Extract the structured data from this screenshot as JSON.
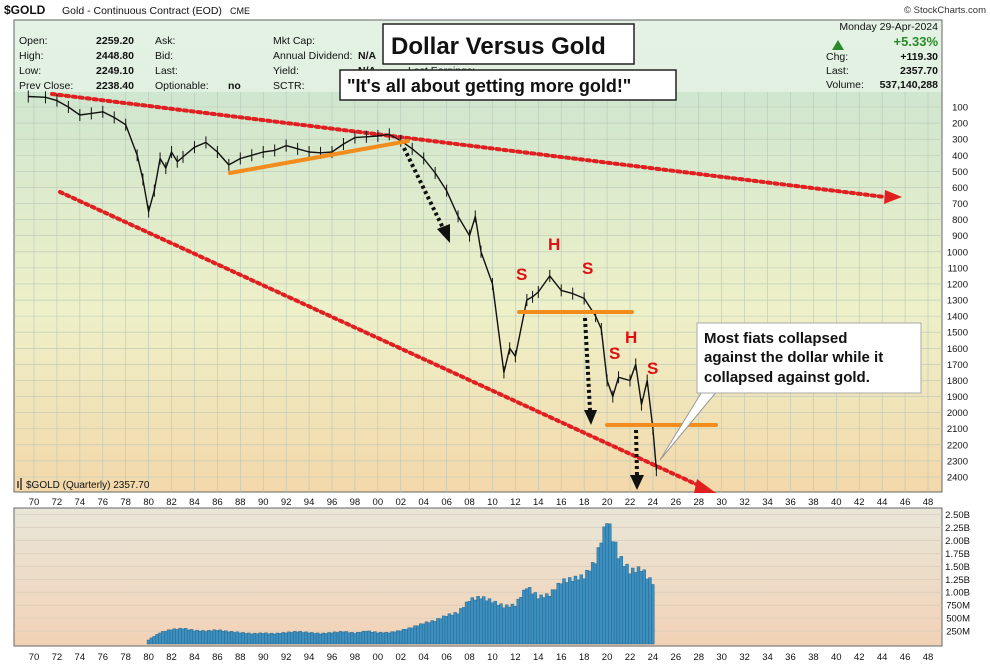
{
  "header": {
    "symbol": "$GOLD",
    "name": "Gold - Continuous Contract (EOD)",
    "exchange": "CME",
    "watermark": "© StockCharts.com",
    "date": "Monday  29-Apr-2024",
    "change_pct": "+5.33%",
    "col1": [
      {
        "label": "Open:",
        "value": "2259.20"
      },
      {
        "label": "High:",
        "value": "2448.80"
      },
      {
        "label": "Low:",
        "value": "2249.10"
      },
      {
        "label": "Prev Close:",
        "value": "2238.40"
      }
    ],
    "col2": [
      {
        "label": "Ask:",
        "value": ""
      },
      {
        "label": "Bid:",
        "value": ""
      },
      {
        "label": "Last:",
        "value": ""
      },
      {
        "label": "Optionable:",
        "value": "no"
      }
    ],
    "col3": [
      {
        "label": "Mkt Cap:",
        "value": ""
      },
      {
        "label": "Annual Dividend:",
        "value": "N/A"
      },
      {
        "label": "Yield:",
        "value": "N/A"
      },
      {
        "label": "SCTR:",
        "value": ""
      }
    ],
    "col4_label": "Last Earnings:",
    "col5": [
      {
        "label": "Chg:",
        "value": "+119.30"
      },
      {
        "label": "Last:",
        "value": "2357.70"
      },
      {
        "label": "Volume:",
        "value": "537,140,288"
      }
    ]
  },
  "annotations": {
    "title": "Dollar Versus Gold",
    "quote": "\"It's all about getting more gold!\"",
    "callout": [
      "Most fiats collapsed",
      "against the dollar while it",
      "collapsed against gold."
    ],
    "pattern_labels": [
      "S",
      "H",
      "S",
      "S",
      "H",
      "S"
    ]
  },
  "chart_data": [
    {
      "type": "line",
      "legend": "$GOLD (Quarterly) 2357.70",
      "y_scale": "inverted (price increases downward)",
      "ylim": [
        50,
        2480
      ],
      "xlim": [
        1969,
        2049
      ],
      "y_ticks": [
        100,
        200,
        300,
        400,
        500,
        600,
        700,
        800,
        900,
        1000,
        1100,
        1200,
        1300,
        1400,
        1500,
        1600,
        1700,
        1800,
        1900,
        2000,
        2100,
        2200,
        2300,
        2400
      ],
      "x_tick_labels": [
        "70",
        "72",
        "74",
        "76",
        "78",
        "80",
        "82",
        "84",
        "86",
        "88",
        "90",
        "92",
        "94",
        "96",
        "98",
        "00",
        "02",
        "04",
        "06",
        "08",
        "10",
        "12",
        "14",
        "16",
        "18",
        "20",
        "22",
        "24",
        "26",
        "28",
        "30",
        "32",
        "34",
        "36",
        "38",
        "40",
        "42",
        "44",
        "46",
        "48"
      ],
      "grid": true,
      "x": [
        1969.5,
        1971,
        1972,
        1973,
        1974,
        1975,
        1976,
        1977,
        1978,
        1979,
        1979.5,
        1980,
        1980.5,
        1981,
        1981.5,
        1982,
        1982.5,
        1983,
        1984,
        1985,
        1986,
        1987,
        1988,
        1989,
        1990,
        1991,
        1992,
        1993,
        1994,
        1995,
        1996,
        1997,
        1998,
        1999,
        2000,
        2001,
        2002,
        2003,
        2004,
        2005,
        2006,
        2007,
        2008,
        2008.5,
        2009,
        2010,
        2011,
        2011.5,
        2012,
        2013,
        2013.5,
        2014,
        2015,
        2016,
        2017,
        2018,
        2019,
        2019.5,
        2020,
        2020.5,
        2021,
        2022,
        2022.5,
        2023,
        2023.5,
        2024,
        2024.3
      ],
      "values": [
        35,
        40,
        60,
        100,
        150,
        140,
        130,
        165,
        210,
        400,
        550,
        750,
        620,
        420,
        480,
        380,
        440,
        410,
        350,
        320,
        380,
        460,
        420,
        400,
        380,
        370,
        340,
        360,
        380,
        385,
        380,
        330,
        290,
        285,
        280,
        270,
        310,
        360,
        420,
        510,
        620,
        780,
        900,
        780,
        1000,
        1200,
        1750,
        1600,
        1650,
        1300,
        1280,
        1250,
        1150,
        1240,
        1260,
        1290,
        1400,
        1480,
        1800,
        1900,
        1780,
        1800,
        1700,
        1950,
        1800,
        2100,
        2357.7
      ]
    },
    {
      "type": "bar",
      "name": "Volume",
      "y_ticks_labels": [
        "250M",
        "500M",
        "750M",
        "1.00B",
        "1.25B",
        "1.50B",
        "1.75B",
        "2.00B",
        "2.25B",
        "2.50B"
      ],
      "ylim": [
        0,
        2.55
      ],
      "unit": "billions",
      "x": [
        1980,
        1981,
        1982,
        1983,
        1984,
        1985,
        1986,
        1987,
        1988,
        1989,
        1990,
        1991,
        1992,
        1993,
        1994,
        1995,
        1996,
        1997,
        1998,
        1999,
        2000,
        2001,
        2002,
        2003,
        2004,
        2005,
        2006,
        2007,
        2008,
        2009,
        2010,
        2011,
        2012,
        2013,
        2014,
        2015,
        2016,
        2017,
        2018,
        2019,
        2020,
        2021,
        2022,
        2023,
        2024
      ],
      "values": [
        0.08,
        0.22,
        0.28,
        0.3,
        0.26,
        0.25,
        0.27,
        0.24,
        0.22,
        0.2,
        0.21,
        0.2,
        0.22,
        0.24,
        0.22,
        0.2,
        0.22,
        0.24,
        0.21,
        0.25,
        0.22,
        0.22,
        0.26,
        0.32,
        0.4,
        0.45,
        0.55,
        0.6,
        0.85,
        0.9,
        0.82,
        0.72,
        0.75,
        1.1,
        0.9,
        0.95,
        1.2,
        1.25,
        1.3,
        1.6,
        2.4,
        1.7,
        1.4,
        1.45,
        1.15
      ]
    }
  ]
}
